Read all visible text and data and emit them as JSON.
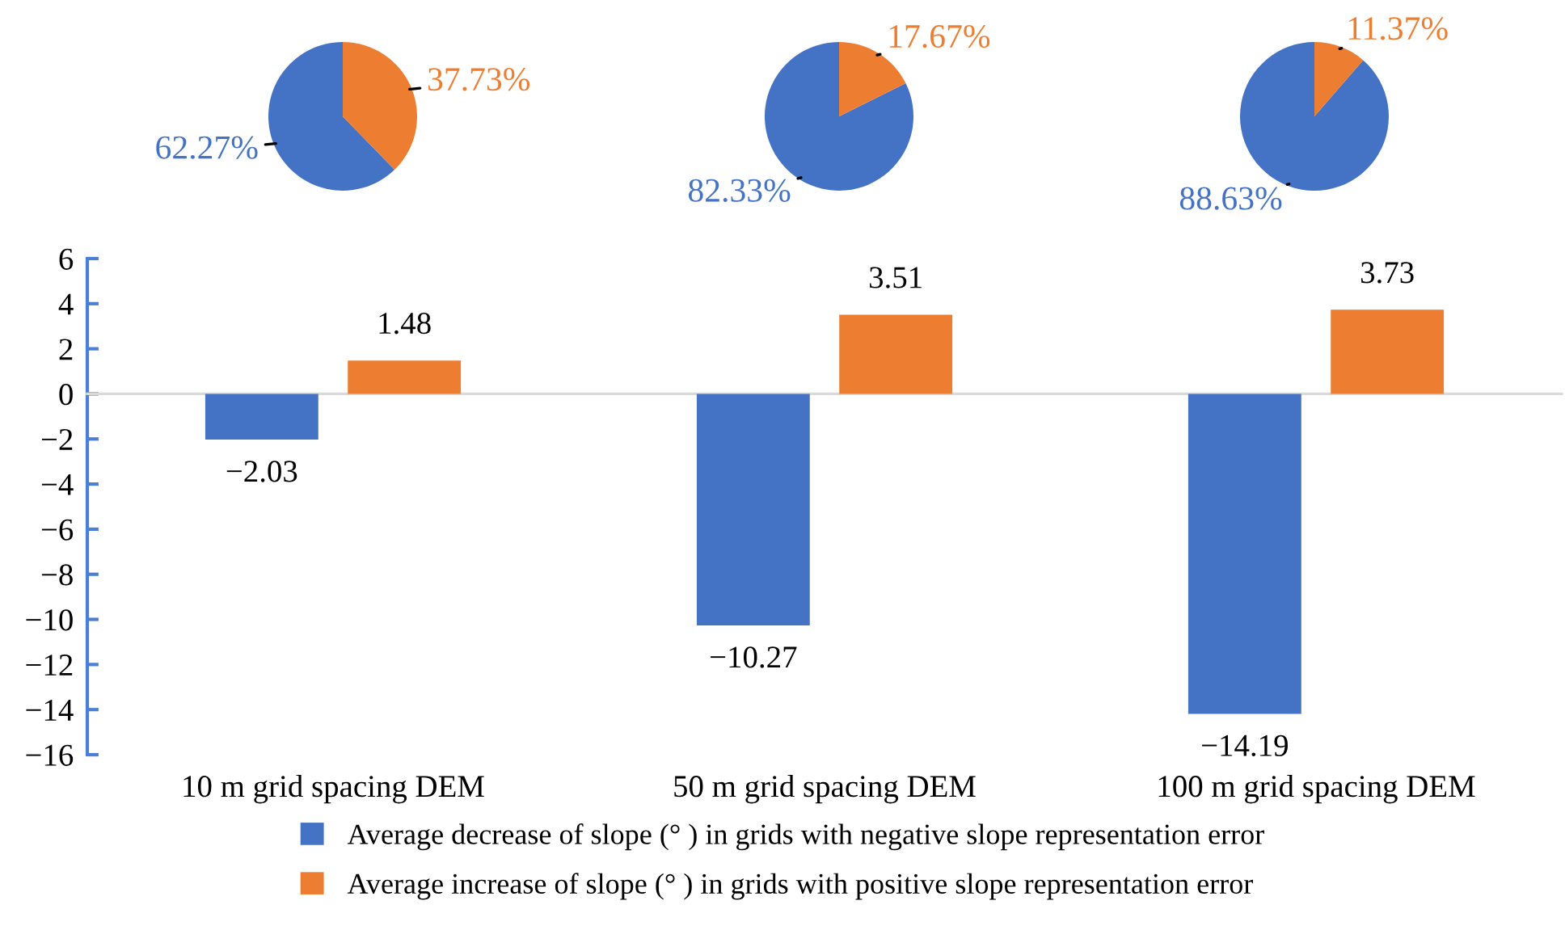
{
  "chart_data": [
    {
      "type": "pie",
      "categories": [
        null,
        null
      ],
      "values": [
        62.27,
        37.73
      ],
      "colors": [
        "#4472c4",
        "#ed7d31"
      ],
      "value_labels": [
        "62.27%",
        "37.73%"
      ]
    },
    {
      "type": "pie",
      "categories": [
        null,
        null
      ],
      "values": [
        82.33,
        17.67
      ],
      "colors": [
        "#4472c4",
        "#ed7d31"
      ],
      "value_labels": [
        "82.33%",
        "17.67%"
      ]
    },
    {
      "type": "pie",
      "categories": [
        null,
        null
      ],
      "values": [
        88.63,
        11.37
      ],
      "colors": [
        "#4472c4",
        "#ed7d31"
      ],
      "value_labels": [
        "88.63%",
        "11.37%"
      ]
    },
    {
      "type": "bar",
      "categories": [
        "10 m grid spacing DEM",
        "50 m grid spacing DEM",
        "100 m grid spacing DEM"
      ],
      "series": [
        {
          "name": "Average decrease of slope (° ) in grids with negative slope representation error",
          "color": "#4472c4",
          "values": [
            -2.03,
            -10.27,
            -14.19
          ]
        },
        {
          "name": "Average increase of slope (° ) in grids with positive slope representation error",
          "color": "#ed7d31",
          "values": [
            1.48,
            3.51,
            3.73
          ]
        }
      ],
      "ylim": [
        -16,
        6
      ],
      "yticks": [
        -16,
        -14,
        -12,
        -10,
        -8,
        -6,
        -4,
        -2,
        0,
        2,
        4,
        6
      ],
      "data_labels": true,
      "legend": "bottom"
    }
  ]
}
